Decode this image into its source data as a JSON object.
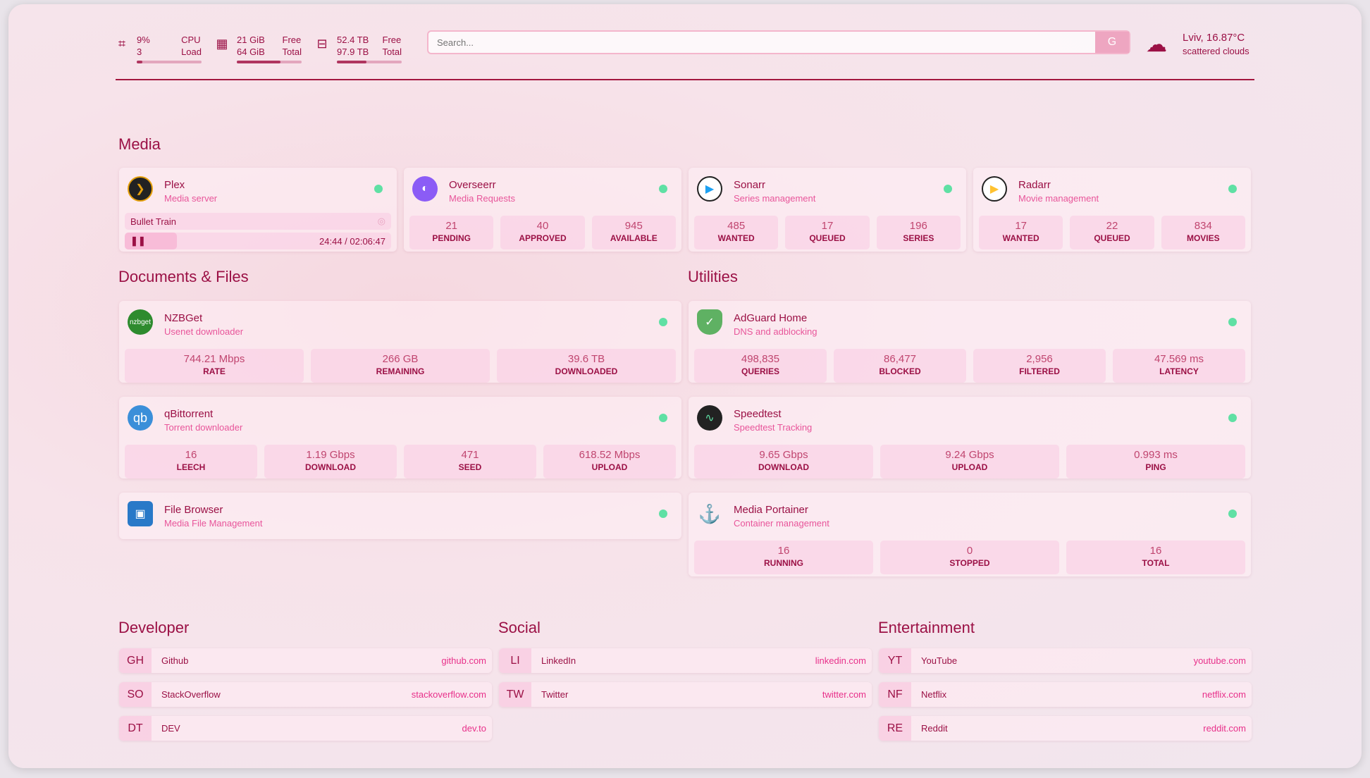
{
  "header": {
    "cpu": {
      "icon": "cpu-icon",
      "value": "9%",
      "value2": "3",
      "label": "CPU",
      "label2": "Load",
      "percent": 9
    },
    "memory": {
      "icon": "memory-icon",
      "value": "21 GiB",
      "value2": "64 GiB",
      "label": "Free",
      "label2": "Total",
      "percent": 67
    },
    "disk": {
      "icon": "disk-icon",
      "value": "52.4 TB",
      "value2": "97.9 TB",
      "label": "Free",
      "label2": "Total",
      "percent": 46
    },
    "search": {
      "placeholder": "Search...",
      "button": "G"
    },
    "weather": {
      "icon": "cloud-sun-icon",
      "location_temp": "Lviv, 16.87°C",
      "condition": "scattered clouds"
    }
  },
  "sections": {
    "media": "Media",
    "docs": "Documents & Files",
    "utilities": "Utilities",
    "developer": "Developer",
    "social": "Social",
    "entertainment": "Entertainment"
  },
  "media": {
    "plex": {
      "name": "Plex",
      "desc": "Media server",
      "now_playing": "Bullet Train",
      "progress": "24:44 / 02:06:47",
      "progress_percent": 19.5
    },
    "overseerr": {
      "name": "Overseerr",
      "desc": "Media Requests",
      "stats": [
        {
          "v": "21",
          "l": "PENDING"
        },
        {
          "v": "40",
          "l": "APPROVED"
        },
        {
          "v": "945",
          "l": "AVAILABLE"
        }
      ]
    },
    "sonarr": {
      "name": "Sonarr",
      "desc": "Series management",
      "stats": [
        {
          "v": "485",
          "l": "WANTED"
        },
        {
          "v": "17",
          "l": "QUEUED"
        },
        {
          "v": "196",
          "l": "SERIES"
        }
      ]
    },
    "radarr": {
      "name": "Radarr",
      "desc": "Movie management",
      "stats": [
        {
          "v": "17",
          "l": "WANTED"
        },
        {
          "v": "22",
          "l": "QUEUED"
        },
        {
          "v": "834",
          "l": "MOVIES"
        }
      ]
    }
  },
  "docs": {
    "nzbget": {
      "name": "NZBGet",
      "desc": "Usenet downloader",
      "logo": "nzbget",
      "stats": [
        {
          "v": "744.21 Mbps",
          "l": "RATE"
        },
        {
          "v": "266 GB",
          "l": "REMAINING"
        },
        {
          "v": "39.6 TB",
          "l": "DOWNLOADED"
        }
      ]
    },
    "qbittorrent": {
      "name": "qBittorrent",
      "desc": "Torrent downloader",
      "logo": "qb",
      "stats": [
        {
          "v": "16",
          "l": "LEECH"
        },
        {
          "v": "1.19 Gbps",
          "l": "DOWNLOAD"
        },
        {
          "v": "471",
          "l": "SEED"
        },
        {
          "v": "618.52 Mbps",
          "l": "UPLOAD"
        }
      ]
    },
    "filebrowser": {
      "name": "File Browser",
      "desc": "Media File Management"
    }
  },
  "utilities": {
    "adguard": {
      "name": "AdGuard Home",
      "desc": "DNS and adblocking",
      "stats": [
        {
          "v": "498,835",
          "l": "QUERIES"
        },
        {
          "v": "86,477",
          "l": "BLOCKED"
        },
        {
          "v": "2,956",
          "l": "FILTERED"
        },
        {
          "v": "47.569 ms",
          "l": "LATENCY"
        }
      ]
    },
    "speedtest": {
      "name": "Speedtest",
      "desc": "Speedtest Tracking",
      "stats": [
        {
          "v": "9.65 Gbps",
          "l": "DOWNLOAD"
        },
        {
          "v": "9.24 Gbps",
          "l": "UPLOAD"
        },
        {
          "v": "0.993 ms",
          "l": "PING"
        }
      ]
    },
    "portainer": {
      "name": "Media Portainer",
      "desc": "Container management",
      "stats": [
        {
          "v": "16",
          "l": "RUNNING"
        },
        {
          "v": "0",
          "l": "STOPPED"
        },
        {
          "v": "16",
          "l": "TOTAL"
        }
      ]
    }
  },
  "bookmarks": {
    "developer": [
      {
        "abbr": "GH",
        "name": "Github",
        "url": "github.com"
      },
      {
        "abbr": "SO",
        "name": "StackOverflow",
        "url": "stackoverflow.com"
      },
      {
        "abbr": "DT",
        "name": "DEV",
        "url": "dev.to"
      }
    ],
    "social": [
      {
        "abbr": "LI",
        "name": "LinkedIn",
        "url": "linkedin.com"
      },
      {
        "abbr": "TW",
        "name": "Twitter",
        "url": "twitter.com"
      }
    ],
    "entertainment": [
      {
        "abbr": "YT",
        "name": "YouTube",
        "url": "youtube.com"
      },
      {
        "abbr": "NF",
        "name": "Netflix",
        "url": "netflix.com"
      },
      {
        "abbr": "RE",
        "name": "Reddit",
        "url": "reddit.com"
      }
    ]
  },
  "colors": {
    "accent": "#9b1045",
    "subtitle": "#e8559a",
    "status_ok": "#5fe0a4"
  }
}
